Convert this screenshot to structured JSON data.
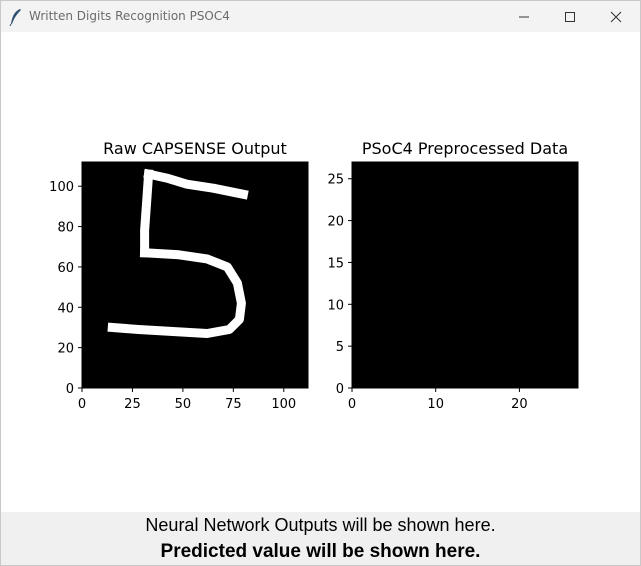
{
  "window": {
    "title": "Written Digits Recognition PSOC4",
    "icon": "feather-icon",
    "controls": [
      "minimize-icon",
      "maximize-icon",
      "close-icon"
    ]
  },
  "chart_data": [
    {
      "type": "heatmap",
      "title": "Raw CAPSENSE Output",
      "xlim": [
        0,
        112
      ],
      "ylim": [
        0,
        112
      ],
      "xticks": [
        0,
        25,
        50,
        75,
        100
      ],
      "yticks": [
        0,
        20,
        40,
        60,
        80,
        100
      ],
      "colormap": "gray",
      "background": "#000000",
      "stroke_color": "#ffffff",
      "depicted_digit": "5",
      "stroke_path": [
        [
          [
            33,
            106
          ],
          [
            42,
            104
          ],
          [
            52,
            101
          ],
          [
            65,
            99
          ],
          [
            80,
            96
          ]
        ],
        [
          [
            33,
            106
          ],
          [
            32,
            92
          ],
          [
            31,
            78
          ],
          [
            31,
            67
          ]
        ],
        [
          [
            31,
            67
          ],
          [
            48,
            66
          ],
          [
            62,
            64
          ],
          [
            72,
            60
          ],
          [
            77,
            52
          ],
          [
            79,
            42
          ],
          [
            78,
            34
          ],
          [
            73,
            29
          ],
          [
            62,
            27
          ],
          [
            45,
            28
          ],
          [
            28,
            29
          ],
          [
            15,
            30
          ]
        ]
      ]
    },
    {
      "type": "heatmap",
      "title": "PSoC4 Preprocessed Data",
      "xlim": [
        0,
        27
      ],
      "ylim": [
        0,
        27
      ],
      "xticks": [
        0,
        10,
        20
      ],
      "yticks": [
        0,
        5,
        10,
        15,
        20,
        25
      ],
      "colormap": "gray",
      "background": "#000000"
    }
  ],
  "output": {
    "nn_outputs_text": "Neural Network Outputs will be shown here.",
    "prediction_text": "Predicted value will be shown here."
  }
}
